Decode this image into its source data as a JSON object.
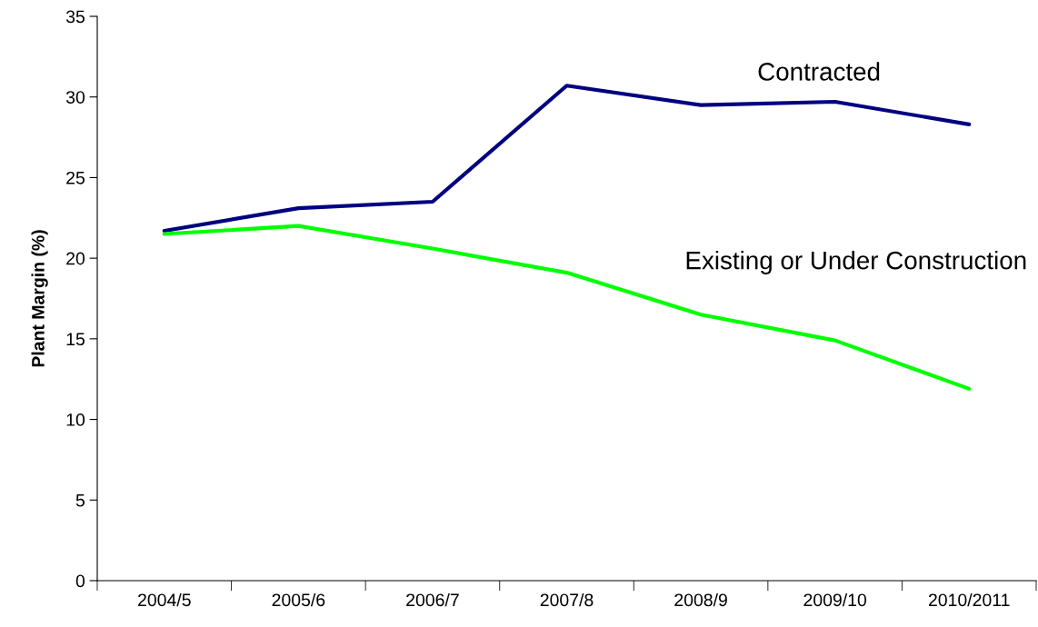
{
  "chart_data": {
    "type": "line",
    "ylabel": "Plant Margin (%)",
    "categories": [
      "2004/5",
      "2005/6",
      "2006/7",
      "2007/8",
      "2008/9",
      "2009/10",
      "2010/2011"
    ],
    "series": [
      {
        "name": "Contracted",
        "color": "#000080",
        "values": [
          21.7,
          23.1,
          23.5,
          30.7,
          29.5,
          29.7,
          28.3
        ]
      },
      {
        "name": "Existing or Under Construction",
        "color": "#00ff00",
        "values": [
          21.5,
          22.0,
          20.6,
          19.1,
          16.5,
          14.9,
          11.9
        ]
      }
    ],
    "ylim": [
      0,
      35
    ],
    "yticks": [
      0,
      5,
      10,
      15,
      20,
      25,
      30,
      35
    ],
    "grid": false,
    "legend": false,
    "marker": "none",
    "line_style": "solid"
  }
}
